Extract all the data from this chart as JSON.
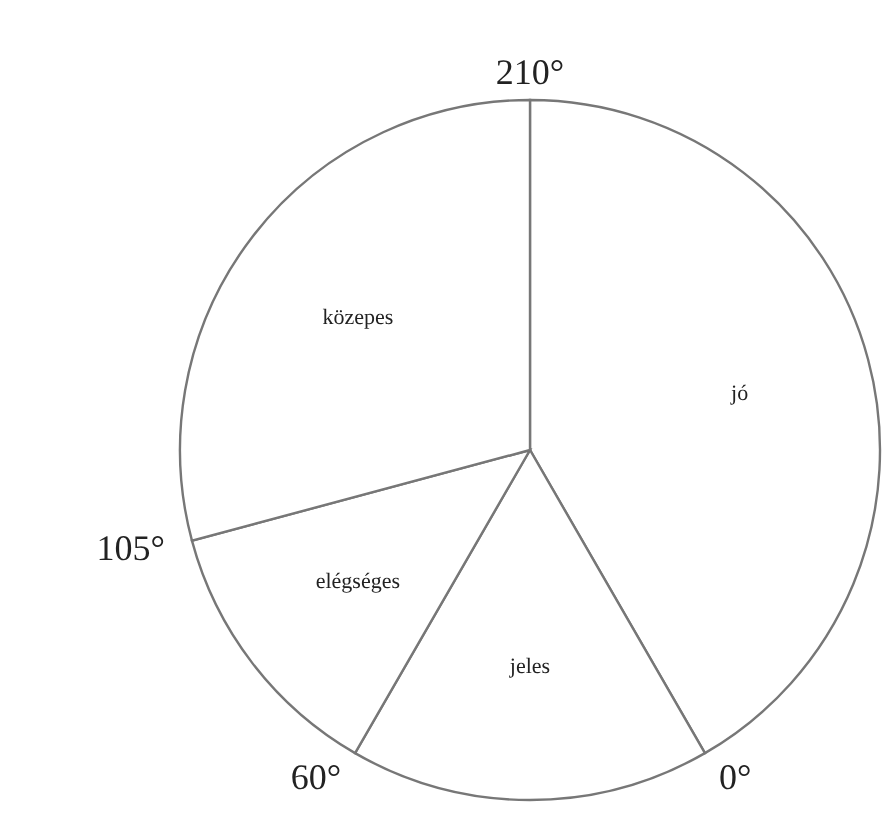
{
  "chart_data": {
    "type": "pie",
    "categories": [
      "jó",
      "jeles",
      "elégséges",
      "közepes"
    ],
    "values": [
      41.67,
      16.66,
      12.5,
      29.17
    ],
    "colors": [
      "#ffffff",
      "#ffffff",
      "#ffffff",
      "#ffffff"
    ],
    "annotations": [
      "210°",
      "0°",
      "60°",
      "105°"
    ],
    "legend": false
  }
}
